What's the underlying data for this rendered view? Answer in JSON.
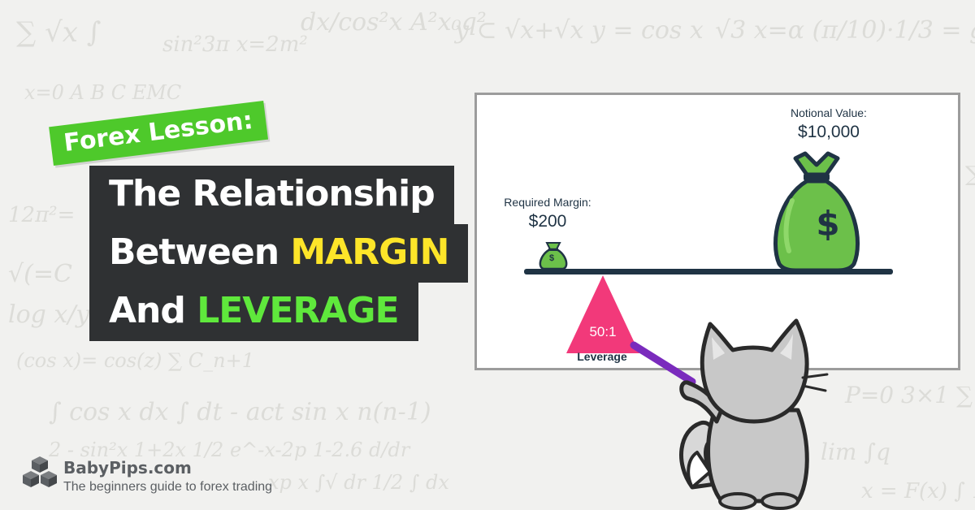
{
  "tag": "Forex Lesson:",
  "title": {
    "line1": "The Relationship",
    "line2_prefix": "Between ",
    "line2_highlight": "MARGIN",
    "line3_prefix": "And ",
    "line3_highlight": "LEVERAGE"
  },
  "diagram": {
    "margin_label": "Required Margin:",
    "margin_value": "$200",
    "notional_label": "Notional Value:",
    "notional_value": "$10,000",
    "ratio": "50:1",
    "leverage_label": "Leverage",
    "money_symbol": "$"
  },
  "brand": {
    "name": "BabyPips.com",
    "tagline": "The beginners guide to forex trading"
  },
  "icons": [
    "money-bag-icon",
    "cubes-logo-icon",
    "cat-mascot-icon"
  ],
  "colors": {
    "tag_green": "#4ec92b",
    "title_bg": "#2f3133",
    "margin_yellow": "#fde529",
    "leverage_green": "#5fe83c",
    "fulcrum_pink": "#f2397a",
    "bag_green": "#6cc04a",
    "pointer_purple": "#7a2bbd"
  }
}
